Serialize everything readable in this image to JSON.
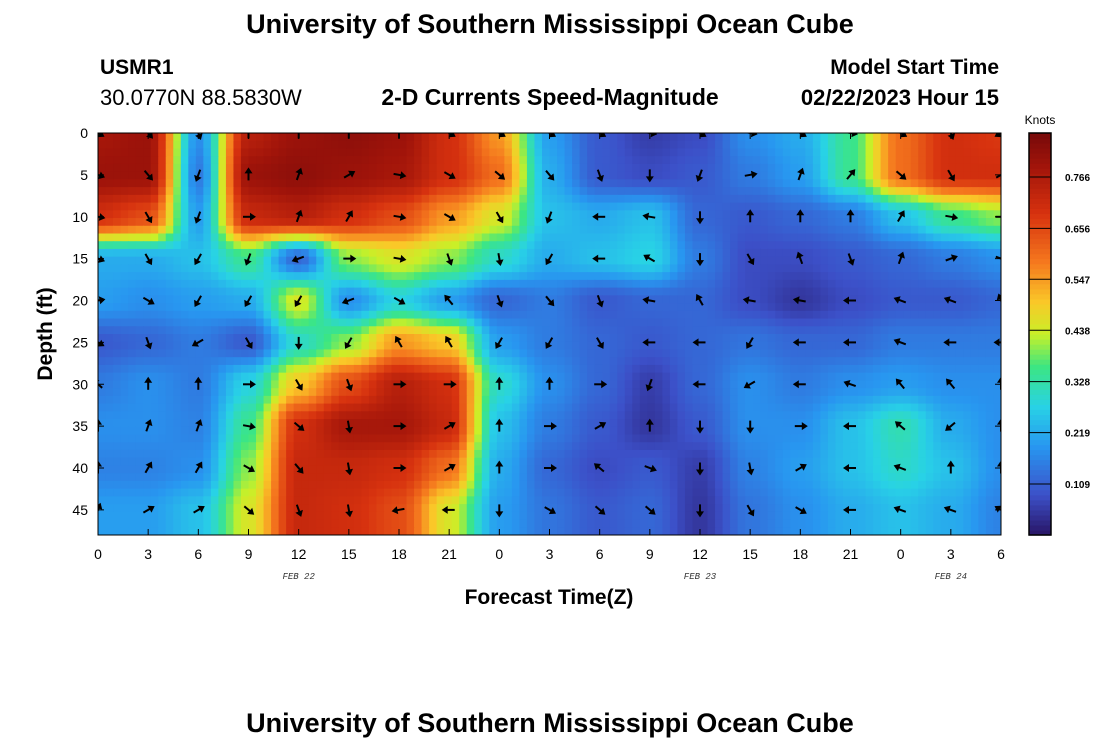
{
  "header": {
    "title": "University of Southern Mississippi Ocean Cube",
    "station": "USMR1",
    "location": "30.0770N  88.5830W",
    "plot_title": "2-D Currents Speed-Magnitude",
    "model_start_label": "Model Start Time",
    "model_start_value": "02/22/2023 Hour 15"
  },
  "footer": {
    "title": "University of Southern Mississippi Ocean Cube"
  },
  "chart_data": {
    "type": "heatmap",
    "xlabel": "Forecast Time(Z)",
    "ylabel": "Depth (ft)",
    "x_tick_labels": [
      "0",
      "3",
      "6",
      "9",
      "12",
      "15",
      "18",
      "21",
      "0",
      "3",
      "6",
      "9",
      "12",
      "15",
      "18",
      "21",
      "0",
      "3",
      "6"
    ],
    "date_labels": [
      {
        "text": "FEB 22",
        "tick_index": 4
      },
      {
        "text": "FEB 23",
        "tick_index": 12
      },
      {
        "text": "FEB 24",
        "tick_index": 17
      }
    ],
    "y_ticks": [
      0,
      5,
      10,
      15,
      20,
      25,
      30,
      35,
      40,
      45
    ],
    "ylim": [
      0,
      48
    ],
    "x_hours": [
      0,
      54
    ],
    "colorbar": {
      "unit": "Knots",
      "min": 0,
      "max": 0.86,
      "tick_values": [
        0.109,
        0.219,
        0.328,
        0.438,
        0.547,
        0.656,
        0.766
      ],
      "tick_labels": [
        "0.109",
        "0.219",
        "0.328",
        "0.438",
        "0.547",
        "0.656",
        "0.766"
      ]
    },
    "speed_grid": {
      "hours": [
        0,
        3,
        6,
        9,
        12,
        15,
        18,
        21,
        24,
        27,
        30,
        33,
        36,
        39,
        42,
        45,
        48,
        51,
        54
      ],
      "depths": [
        0,
        5,
        10,
        15,
        20,
        25,
        30,
        35,
        40,
        45
      ],
      "values": [
        [
          0.78,
          0.8,
          0.18,
          0.75,
          0.8,
          0.82,
          0.8,
          0.7,
          0.55,
          0.2,
          0.1,
          0.06,
          0.08,
          0.18,
          0.22,
          0.35,
          0.6,
          0.7,
          0.68
        ],
        [
          0.8,
          0.8,
          0.15,
          0.8,
          0.82,
          0.8,
          0.78,
          0.7,
          0.6,
          0.22,
          0.1,
          0.08,
          0.1,
          0.15,
          0.2,
          0.35,
          0.6,
          0.7,
          0.7
        ],
        [
          0.7,
          0.65,
          0.2,
          0.72,
          0.75,
          0.7,
          0.65,
          0.55,
          0.45,
          0.25,
          0.22,
          0.25,
          0.12,
          0.1,
          0.12,
          0.15,
          0.25,
          0.35,
          0.4
        ],
        [
          0.22,
          0.22,
          0.25,
          0.35,
          0.12,
          0.4,
          0.45,
          0.4,
          0.3,
          0.22,
          0.25,
          0.28,
          0.15,
          0.08,
          0.08,
          0.1,
          0.12,
          0.15,
          0.18
        ],
        [
          0.2,
          0.18,
          0.2,
          0.22,
          0.45,
          0.18,
          0.28,
          0.2,
          0.12,
          0.15,
          0.1,
          0.12,
          0.12,
          0.08,
          0.05,
          0.08,
          0.1,
          0.1,
          0.12
        ],
        [
          0.1,
          0.12,
          0.15,
          0.1,
          0.3,
          0.4,
          0.55,
          0.5,
          0.2,
          0.15,
          0.12,
          0.1,
          0.12,
          0.14,
          0.12,
          0.12,
          0.15,
          0.15,
          0.15
        ],
        [
          0.15,
          0.18,
          0.15,
          0.28,
          0.5,
          0.65,
          0.75,
          0.7,
          0.3,
          0.18,
          0.12,
          0.06,
          0.12,
          0.18,
          0.15,
          0.18,
          0.2,
          0.18,
          0.18
        ],
        [
          0.18,
          0.18,
          0.16,
          0.35,
          0.7,
          0.78,
          0.78,
          0.72,
          0.25,
          0.15,
          0.1,
          0.05,
          0.1,
          0.18,
          0.18,
          0.25,
          0.32,
          0.22,
          0.18
        ],
        [
          0.16,
          0.16,
          0.18,
          0.4,
          0.72,
          0.72,
          0.7,
          0.6,
          0.22,
          0.12,
          0.08,
          0.1,
          0.06,
          0.16,
          0.2,
          0.25,
          0.3,
          0.25,
          0.18
        ],
        [
          0.2,
          0.2,
          0.25,
          0.45,
          0.72,
          0.7,
          0.65,
          0.45,
          0.2,
          0.14,
          0.1,
          0.12,
          0.05,
          0.14,
          0.18,
          0.22,
          0.25,
          0.22,
          0.16
        ]
      ]
    },
    "direction_grid_deg": {
      "hours": [
        0,
        3,
        6,
        9,
        12,
        15,
        18,
        21,
        24,
        27,
        30,
        33,
        36,
        39,
        42,
        45,
        48,
        51,
        54
      ],
      "depths": [
        0,
        5,
        10,
        15,
        20,
        25,
        30,
        35,
        40,
        45
      ],
      "values": [
        [
          120,
          140,
          160,
          0,
          0,
          0,
          0,
          120,
          120,
          120,
          120,
          100,
          120,
          100,
          120,
          100,
          120,
          160,
          240
        ],
        [
          110,
          140,
          200,
          0,
          20,
          60,
          100,
          120,
          130,
          140,
          160,
          180,
          200,
          80,
          20,
          40,
          130,
          150,
          60
        ],
        [
          100,
          150,
          200,
          90,
          20,
          30,
          100,
          120,
          150,
          200,
          270,
          280,
          180,
          0,
          0,
          0,
          30,
          100,
          90
        ],
        [
          110,
          150,
          210,
          200,
          250,
          90,
          100,
          160,
          170,
          210,
          270,
          300,
          180,
          150,
          340,
          160,
          20,
          70,
          110
        ],
        [
          80,
          120,
          210,
          210,
          210,
          250,
          120,
          320,
          160,
          140,
          160,
          280,
          330,
          280,
          280,
          270,
          290,
          290,
          340
        ],
        [
          120,
          160,
          240,
          150,
          180,
          210,
          330,
          330,
          210,
          210,
          150,
          270,
          270,
          210,
          270,
          270,
          290,
          270,
          270
        ],
        [
          310,
          0,
          0,
          90,
          150,
          160,
          90,
          90,
          0,
          0,
          90,
          200,
          270,
          240,
          270,
          290,
          320,
          320,
          0
        ],
        [
          0,
          20,
          20,
          100,
          130,
          170,
          90,
          60,
          0,
          90,
          60,
          0,
          180,
          180,
          90,
          270,
          310,
          230,
          0
        ],
        [
          0,
          30,
          30,
          120,
          140,
          170,
          90,
          60,
          0,
          90,
          310,
          110,
          180,
          170,
          60,
          270,
          290,
          0,
          0
        ],
        [
          20,
          60,
          60,
          130,
          160,
          170,
          260,
          270,
          180,
          120,
          130,
          130,
          180,
          150,
          120,
          270,
          290,
          290,
          300
        ]
      ]
    }
  }
}
